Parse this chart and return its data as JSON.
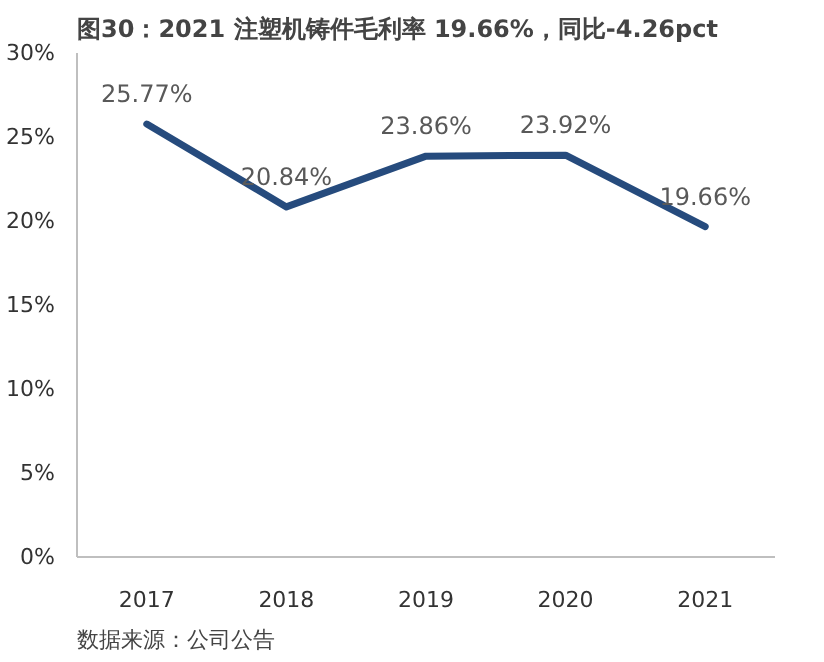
{
  "chart_data": {
    "type": "line",
    "title": "图30：2021 注塑机铸件毛利率 19.66%，同比-4.26pct",
    "categories": [
      "2017",
      "2018",
      "2019",
      "2020",
      "2021"
    ],
    "series": [
      {
        "color": "#264b7d",
        "values": [
          25.77,
          20.84,
          23.86,
          23.92,
          19.66
        ],
        "value_labels": [
          "25.77%",
          "20.84%",
          "23.86%",
          "23.92%",
          "19.66%"
        ]
      }
    ],
    "ylim": [
      0,
      30
    ],
    "yticks": [
      {
        "value": 0,
        "label": "0%"
      },
      {
        "value": 5,
        "label": "5%"
      },
      {
        "value": 10,
        "label": "10%"
      },
      {
        "value": 15,
        "label": "15%"
      },
      {
        "value": 20,
        "label": "20%"
      },
      {
        "value": 25,
        "label": "25%"
      },
      {
        "value": 30,
        "label": "30%"
      }
    ],
    "grid": false,
    "marker": "none",
    "line_style": "solid",
    "annotations": [
      "数据来源：公司公告"
    ]
  }
}
